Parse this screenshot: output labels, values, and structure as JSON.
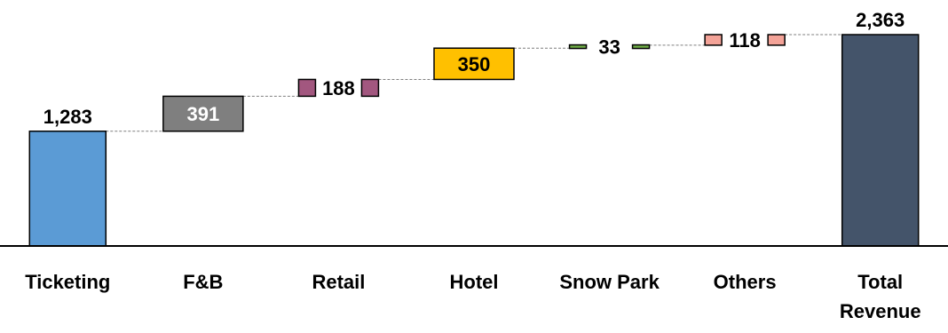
{
  "chart_data": {
    "type": "waterfall",
    "title": "",
    "xlabel": "",
    "ylabel": "",
    "ylim": [
      0,
      2363
    ],
    "grid": false,
    "legend": "none",
    "categories": [
      "Ticketing",
      "F&B",
      "Retail",
      "Hotel",
      "Snow Park",
      "Others",
      "Total Revenue"
    ],
    "values": [
      1283,
      391,
      188,
      350,
      33,
      118,
      2363
    ],
    "labels": [
      "1,283",
      "391",
      "188",
      "350",
      "33",
      "118",
      "2,363"
    ],
    "kinds": [
      "base",
      "increment",
      "increment",
      "increment",
      "increment",
      "increment",
      "total"
    ],
    "colors": [
      "#5b9bd5",
      "#7f7f7f",
      "#a2577f",
      "#ffc000",
      "#70ad47",
      "#f4a398",
      "#44546a"
    ],
    "label_colors": [
      "#000000",
      "#ffffff",
      "#000000",
      "#000000",
      "#000000",
      "#000000",
      "#000000"
    ]
  }
}
